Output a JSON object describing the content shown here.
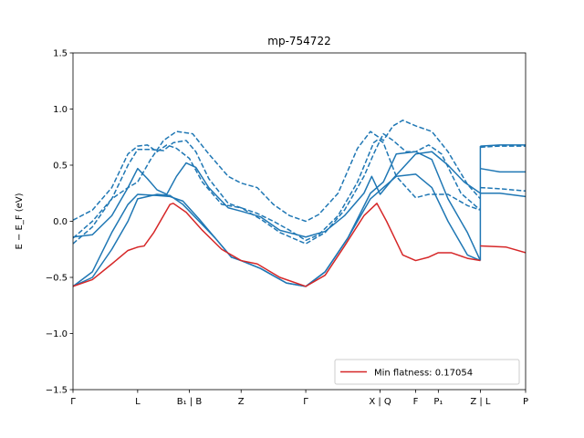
{
  "chart_data": {
    "type": "line",
    "title": "mp-754722",
    "ylabel": "E − E_F (eV)",
    "ylim": [
      -1.5,
      1.5
    ],
    "yticks": [
      -1.5,
      -1.0,
      -0.5,
      0.0,
      0.5,
      1.0,
      1.5
    ],
    "ytick_labels": [
      "−1.5",
      "−1.0",
      "−0.5",
      "0.0",
      "0.5",
      "1.0",
      "1.5"
    ],
    "xlim": [
      0,
      7.0
    ],
    "xticks": [
      {
        "x": 0.0,
        "label": "Γ"
      },
      {
        "x": 1.0,
        "label": "L"
      },
      {
        "x": 1.8,
        "label": "B₁ | B"
      },
      {
        "x": 2.6,
        "label": "Z"
      },
      {
        "x": 3.6,
        "label": "Γ"
      },
      {
        "x": 4.75,
        "label": "X | Q"
      },
      {
        "x": 5.3,
        "label": "F"
      },
      {
        "x": 5.65,
        "label": "P₁"
      },
      {
        "x": 6.3,
        "label": "Z | L"
      },
      {
        "x": 7.0,
        "label": "P"
      }
    ],
    "legend": {
      "label": "Min flatness: 0.17054",
      "placement": "lower-right"
    },
    "colors": {
      "band": "#1f77b4",
      "flat_band": "#d62728"
    },
    "series": [
      {
        "style": "dashed",
        "color": "#1f77b4",
        "points": [
          [
            0.0,
            0.01
          ],
          [
            0.3,
            0.1
          ],
          [
            0.6,
            0.3
          ],
          [
            0.85,
            0.6
          ],
          [
            1.0,
            0.67
          ],
          [
            1.15,
            0.68
          ],
          [
            1.3,
            0.62
          ],
          [
            1.45,
            0.68
          ],
          [
            1.6,
            0.65
          ],
          [
            1.8,
            0.56
          ],
          [
            2.0,
            0.35
          ],
          [
            2.3,
            0.15
          ],
          [
            2.6,
            0.12
          ],
          [
            2.85,
            0.07
          ],
          [
            3.1,
            0.0
          ],
          [
            3.35,
            -0.08
          ],
          [
            3.6,
            -0.17
          ],
          [
            3.8,
            -0.12
          ],
          [
            4.1,
            0.05
          ],
          [
            4.4,
            0.35
          ],
          [
            4.65,
            0.7
          ],
          [
            4.72,
            0.73
          ],
          [
            4.8,
            0.7
          ],
          [
            5.0,
            0.4
          ],
          [
            5.3,
            0.21
          ],
          [
            5.5,
            0.24
          ],
          [
            5.8,
            0.24
          ],
          [
            6.1,
            0.14
          ],
          [
            6.3,
            0.1
          ]
        ]
      },
      {
        "style": "dashed",
        "color": "#1f77b4",
        "points": [
          [
            0.0,
            -0.2
          ],
          [
            0.3,
            -0.05
          ],
          [
            0.6,
            0.2
          ],
          [
            0.85,
            0.5
          ],
          [
            1.0,
            0.64
          ],
          [
            1.2,
            0.64
          ],
          [
            1.4,
            0.63
          ],
          [
            1.55,
            0.7
          ],
          [
            1.75,
            0.72
          ],
          [
            1.9,
            0.62
          ],
          [
            2.1,
            0.38
          ],
          [
            2.4,
            0.16
          ],
          [
            2.6,
            0.12
          ],
          [
            2.9,
            0.02
          ],
          [
            3.2,
            -0.1
          ],
          [
            3.6,
            -0.2
          ],
          [
            3.9,
            -0.1
          ],
          [
            4.2,
            0.1
          ],
          [
            4.5,
            0.4
          ],
          [
            4.65,
            0.6
          ],
          [
            4.8,
            0.78
          ],
          [
            4.95,
            0.72
          ],
          [
            5.15,
            0.62
          ],
          [
            5.3,
            0.62
          ],
          [
            5.5,
            0.68
          ],
          [
            5.7,
            0.6
          ],
          [
            6.0,
            0.25
          ],
          [
            6.3,
            0.1
          ]
        ]
      },
      {
        "style": "dashed",
        "color": "#1f77b4",
        "points": [
          [
            0.0,
            -0.15
          ],
          [
            0.3,
            0.0
          ],
          [
            0.6,
            0.2
          ],
          [
            0.85,
            0.3
          ],
          [
            1.0,
            0.35
          ],
          [
            1.2,
            0.55
          ],
          [
            1.4,
            0.72
          ],
          [
            1.6,
            0.8
          ],
          [
            1.85,
            0.78
          ],
          [
            2.1,
            0.6
          ],
          [
            2.4,
            0.4
          ],
          [
            2.6,
            0.34
          ],
          [
            2.85,
            0.3
          ],
          [
            3.1,
            0.15
          ],
          [
            3.35,
            0.05
          ],
          [
            3.6,
            0.0
          ],
          [
            3.8,
            0.06
          ],
          [
            4.1,
            0.25
          ],
          [
            4.4,
            0.65
          ],
          [
            4.6,
            0.8
          ],
          [
            4.8,
            0.72
          ],
          [
            4.95,
            0.85
          ],
          [
            5.1,
            0.9
          ],
          [
            5.3,
            0.85
          ],
          [
            5.55,
            0.8
          ],
          [
            5.8,
            0.62
          ],
          [
            6.1,
            0.33
          ],
          [
            6.3,
            0.2
          ]
        ]
      },
      {
        "style": "dashed",
        "color": "#1f77b4",
        "points": [
          [
            6.3,
            0.66
          ],
          [
            6.6,
            0.67
          ],
          [
            7.0,
            0.67
          ]
        ]
      },
      {
        "style": "dashed",
        "color": "#1f77b4",
        "points": [
          [
            6.3,
            0.3
          ],
          [
            6.6,
            0.29
          ],
          [
            7.0,
            0.27
          ]
        ]
      },
      {
        "style": "solid",
        "color": "#1f77b4",
        "points": [
          [
            0.0,
            -0.14
          ],
          [
            0.3,
            -0.12
          ],
          [
            0.6,
            0.05
          ],
          [
            0.85,
            0.3
          ],
          [
            1.0,
            0.47
          ],
          [
            1.15,
            0.38
          ],
          [
            1.3,
            0.28
          ],
          [
            1.45,
            0.24
          ],
          [
            1.6,
            0.4
          ],
          [
            1.75,
            0.52
          ],
          [
            1.9,
            0.48
          ],
          [
            2.1,
            0.3
          ],
          [
            2.4,
            0.12
          ],
          [
            2.6,
            0.09
          ],
          [
            2.9,
            0.04
          ],
          [
            3.2,
            -0.08
          ],
          [
            3.6,
            -0.14
          ],
          [
            3.9,
            -0.09
          ],
          [
            4.2,
            0.05
          ],
          [
            4.5,
            0.25
          ],
          [
            4.62,
            0.4
          ],
          [
            4.75,
            0.24
          ],
          [
            4.95,
            0.38
          ],
          [
            5.3,
            0.6
          ],
          [
            5.55,
            0.62
          ],
          [
            5.8,
            0.5
          ],
          [
            6.05,
            0.35
          ],
          [
            6.3,
            0.25
          ]
        ]
      },
      {
        "style": "solid",
        "color": "#1f77b4",
        "points": [
          [
            0.0,
            -0.58
          ],
          [
            0.3,
            -0.45
          ],
          [
            0.6,
            -0.1
          ],
          [
            0.85,
            0.15
          ],
          [
            1.0,
            0.24
          ],
          [
            1.3,
            0.23
          ],
          [
            1.5,
            0.22
          ],
          [
            1.7,
            0.18
          ],
          [
            1.95,
            0.02
          ],
          [
            2.2,
            -0.15
          ],
          [
            2.45,
            -0.32
          ],
          [
            2.6,
            -0.35
          ],
          [
            2.9,
            -0.42
          ],
          [
            3.3,
            -0.55
          ],
          [
            3.6,
            -0.58
          ],
          [
            3.9,
            -0.45
          ],
          [
            4.25,
            -0.15
          ],
          [
            4.6,
            0.2
          ],
          [
            4.8,
            0.3
          ],
          [
            5.0,
            0.4
          ],
          [
            5.3,
            0.42
          ],
          [
            5.55,
            0.3
          ],
          [
            5.8,
            0.0
          ],
          [
            6.1,
            -0.3
          ],
          [
            6.3,
            -0.35
          ]
        ]
      },
      {
        "style": "solid",
        "color": "#1f77b4",
        "points": [
          [
            0.0,
            -0.58
          ],
          [
            0.3,
            -0.5
          ],
          [
            0.6,
            -0.25
          ],
          [
            0.85,
            0.0
          ],
          [
            1.0,
            0.2
          ],
          [
            1.3,
            0.24
          ],
          [
            1.5,
            0.23
          ],
          [
            1.7,
            0.15
          ],
          [
            1.95,
            0.0
          ],
          [
            2.2,
            -0.15
          ],
          [
            2.45,
            -0.32
          ],
          [
            2.6,
            -0.35
          ],
          [
            2.9,
            -0.42
          ],
          [
            3.3,
            -0.55
          ],
          [
            3.6,
            -0.58
          ],
          [
            3.9,
            -0.45
          ],
          [
            4.25,
            -0.15
          ],
          [
            4.6,
            0.25
          ],
          [
            4.8,
            0.35
          ],
          [
            5.0,
            0.6
          ],
          [
            5.3,
            0.62
          ],
          [
            5.55,
            0.55
          ],
          [
            5.8,
            0.2
          ],
          [
            6.1,
            -0.1
          ],
          [
            6.3,
            -0.35
          ]
        ]
      },
      {
        "style": "solid",
        "color": "#1f77b4",
        "points": [
          [
            6.3,
            0.67
          ],
          [
            6.6,
            0.68
          ],
          [
            7.0,
            0.68
          ]
        ]
      },
      {
        "style": "solid",
        "color": "#1f77b4",
        "points": [
          [
            6.3,
            0.47
          ],
          [
            6.6,
            0.44
          ],
          [
            7.0,
            0.44
          ]
        ]
      },
      {
        "style": "solid",
        "color": "#1f77b4",
        "points": [
          [
            6.3,
            0.25
          ],
          [
            6.6,
            0.25
          ],
          [
            7.0,
            0.22
          ]
        ]
      },
      {
        "style": "solid",
        "color": "#1f77b4",
        "points": [
          [
            6.3,
            -0.35
          ],
          [
            6.3,
            0.67
          ]
        ]
      },
      {
        "style": "solid",
        "color": "#d62728",
        "points": [
          [
            0.0,
            -0.58
          ],
          [
            0.3,
            -0.52
          ],
          [
            0.6,
            -0.38
          ],
          [
            0.85,
            -0.26
          ],
          [
            1.0,
            -0.23
          ],
          [
            1.1,
            -0.22
          ],
          [
            1.25,
            -0.1
          ],
          [
            1.5,
            0.15
          ],
          [
            1.55,
            0.16
          ],
          [
            1.75,
            0.08
          ],
          [
            2.0,
            -0.08
          ],
          [
            2.3,
            -0.25
          ],
          [
            2.6,
            -0.35
          ],
          [
            2.85,
            -0.38
          ],
          [
            3.2,
            -0.5
          ],
          [
            3.6,
            -0.58
          ],
          [
            3.9,
            -0.48
          ],
          [
            4.2,
            -0.22
          ],
          [
            4.5,
            0.05
          ],
          [
            4.7,
            0.16
          ],
          [
            4.85,
            0.0
          ],
          [
            5.1,
            -0.3
          ],
          [
            5.3,
            -0.35
          ],
          [
            5.5,
            -0.32
          ],
          [
            5.65,
            -0.28
          ],
          [
            5.85,
            -0.28
          ],
          [
            6.1,
            -0.33
          ],
          [
            6.3,
            -0.35
          ]
        ]
      },
      {
        "style": "solid",
        "color": "#d62728",
        "points": [
          [
            6.3,
            -0.22
          ],
          [
            6.7,
            -0.23
          ],
          [
            7.0,
            -0.28
          ]
        ]
      }
    ]
  }
}
